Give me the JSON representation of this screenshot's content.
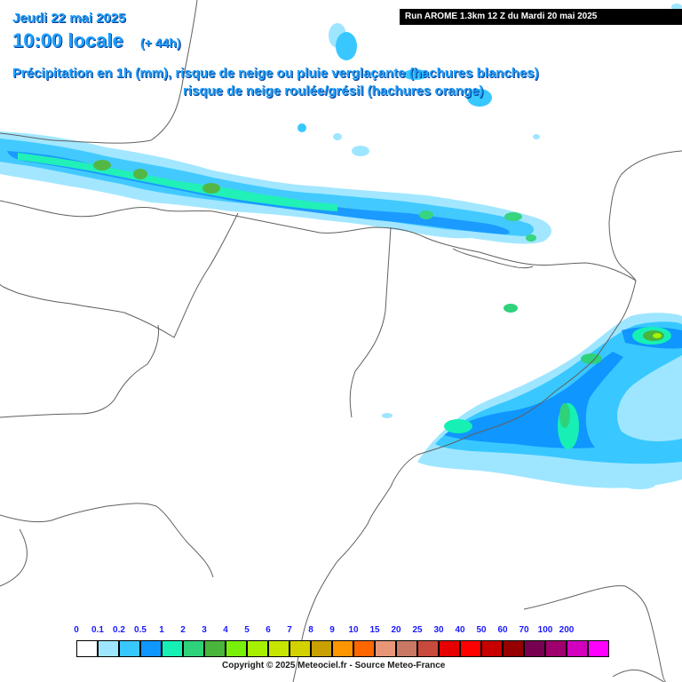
{
  "header": {
    "date": "Jeudi 22 mai 2025",
    "time": "10:00 locale",
    "offset": "(+ 44h)",
    "line1": "Précipitation en 1h (mm), risque de neige ou pluie verglaçante (hachures blanches)",
    "line2": "risque de neige roulée/grésil (hachures orange)"
  },
  "run_label": "Run AROME 1.3km 12 Z du Mardi 20 mai 2025",
  "legend": {
    "labels": [
      "0",
      "0.1",
      "0.2",
      "0.5",
      "1",
      "2",
      "3",
      "4",
      "5",
      "6",
      "7",
      "8",
      "9",
      "10",
      "15",
      "20",
      "25",
      "30",
      "40",
      "50",
      "60",
      "70",
      "100",
      "200"
    ],
    "colors": [
      "#ffffff",
      "#9ee6ff",
      "#38c8ff",
      "#0f96ff",
      "#16f0b4",
      "#2ed27a",
      "#4ab43c",
      "#78f00a",
      "#a6f000",
      "#c6e600",
      "#d2d200",
      "#c8a000",
      "#ff9600",
      "#ff6600",
      "#e89678",
      "#c87864",
      "#c84a3c",
      "#e60000",
      "#ff0000",
      "#c80000",
      "#960000",
      "#780050",
      "#a0006e",
      "#d200be",
      "#ff00ff"
    ]
  },
  "copyright": "Copyright © 2025 Meteociel.fr - Source Meteo-France"
}
